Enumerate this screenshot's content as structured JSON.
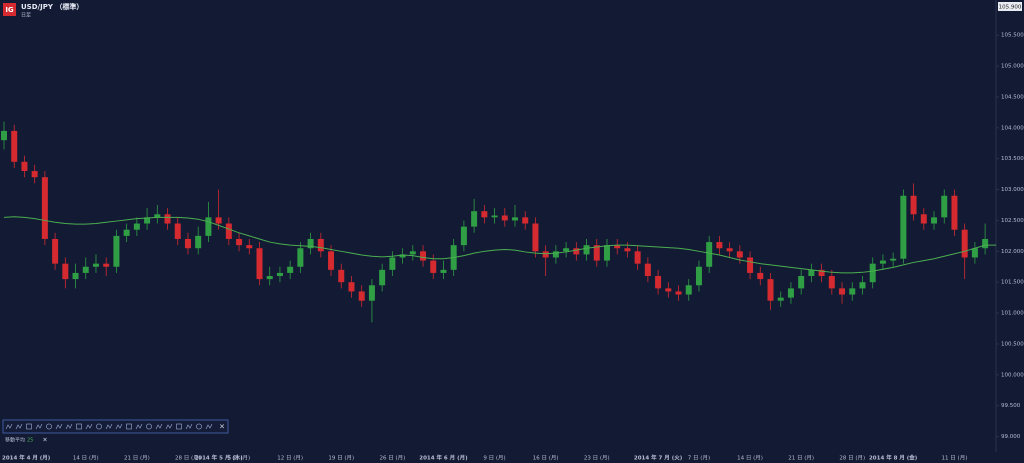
{
  "chart_data": {
    "type": "candlestick",
    "logo": "IG",
    "title": "USD/JPY （標準）",
    "subtitle": "日足",
    "price_box": "105.900",
    "categories": [
      "2014 年 4 月 (月)",
      null,
      null,
      null,
      null,
      null,
      null,
      null,
      "14 日 (月)",
      null,
      null,
      null,
      null,
      "21 日 (月)",
      null,
      null,
      null,
      null,
      "28 日 (月)",
      null,
      null,
      "2014 年 5 月 (木)",
      null,
      "5 日 (月)",
      null,
      null,
      null,
      null,
      "12 日 (月)",
      null,
      null,
      null,
      null,
      "19 日 (月)",
      null,
      null,
      null,
      null,
      "26 日 (月)",
      null,
      null,
      null,
      null,
      "2014 年 6 月 (月)",
      null,
      null,
      null,
      null,
      "9 日 (月)",
      null,
      null,
      null,
      null,
      "16 日 (月)",
      null,
      null,
      null,
      null,
      "23 日 (月)",
      null,
      null,
      null,
      null,
      null,
      "2014 年 7 月 (火)",
      null,
      null,
      null,
      "7 日 (月)",
      null,
      null,
      null,
      null,
      "14 日 (月)",
      null,
      null,
      null,
      null,
      "21 日 (月)",
      null,
      null,
      null,
      null,
      "28 日 (月)",
      null,
      null,
      null,
      "2014 年 8 月 (金)",
      null,
      null,
      null,
      null,
      null,
      "11 日 (月)",
      null,
      null,
      null
    ],
    "open": [
      103.8,
      103.95,
      103.45,
      103.3,
      103.2,
      102.2,
      101.8,
      101.55,
      101.65,
      101.75,
      101.8,
      101.75,
      102.25,
      102.35,
      102.45,
      102.55,
      102.6,
      102.45,
      102.2,
      102.05,
      102.25,
      102.55,
      102.45,
      102.2,
      102.1,
      102.05,
      101.55,
      101.6,
      101.65,
      101.75,
      102.05,
      102.2,
      102.0,
      101.7,
      101.5,
      101.35,
      101.2,
      101.45,
      101.7,
      101.9,
      101.95,
      102.0,
      101.85,
      101.65,
      101.7,
      102.1,
      102.4,
      102.65,
      102.55,
      102.58,
      102.5,
      102.55,
      102.45,
      102.0,
      101.9,
      102.0,
      102.05,
      101.95,
      102.1,
      101.85,
      102.1,
      102.05,
      102.0,
      101.8,
      101.6,
      101.4,
      101.35,
      101.3,
      101.45,
      101.75,
      102.15,
      102.05,
      102.0,
      101.9,
      101.65,
      101.55,
      101.2,
      101.25,
      101.4,
      101.6,
      101.7,
      101.6,
      101.4,
      101.3,
      101.4,
      101.5,
      101.8,
      101.85,
      101.88,
      102.9,
      102.6,
      102.45,
      102.55,
      102.9,
      102.35,
      101.9,
      102.05
    ],
    "high": [
      104.1,
      104.05,
      103.55,
      103.4,
      103.3,
      102.3,
      101.9,
      101.8,
      101.9,
      101.95,
      101.9,
      102.35,
      102.45,
      102.55,
      102.7,
      102.75,
      102.7,
      102.55,
      102.3,
      102.4,
      102.8,
      103.0,
      102.55,
      102.3,
      102.2,
      102.15,
      101.75,
      101.75,
      101.85,
      102.15,
      102.3,
      102.3,
      102.1,
      101.8,
      101.6,
      101.45,
      101.55,
      101.8,
      102.0,
      102.05,
      102.1,
      102.1,
      101.95,
      101.85,
      102.2,
      102.5,
      102.85,
      102.75,
      102.7,
      102.7,
      102.75,
      102.65,
      102.55,
      102.1,
      102.1,
      102.15,
      102.15,
      102.2,
      102.2,
      102.2,
      102.2,
      102.15,
      102.1,
      101.9,
      101.7,
      101.5,
      101.45,
      101.55,
      101.85,
      102.25,
      102.25,
      102.15,
      102.1,
      102.0,
      101.75,
      101.65,
      101.35,
      101.5,
      101.7,
      101.8,
      101.8,
      101.7,
      101.5,
      101.5,
      101.6,
      101.9,
      101.95,
      101.98,
      103.0,
      103.1,
      102.7,
      102.65,
      103.0,
      103.0,
      102.45,
      102.15,
      102.45
    ],
    "low": [
      103.65,
      103.35,
      103.2,
      103.1,
      102.1,
      101.7,
      101.4,
      101.4,
      101.55,
      101.65,
      101.6,
      101.65,
      102.15,
      102.25,
      102.35,
      102.45,
      102.35,
      102.1,
      101.95,
      101.95,
      102.15,
      102.35,
      102.1,
      102.0,
      101.95,
      101.45,
      101.45,
      101.5,
      101.55,
      101.65,
      101.95,
      101.9,
      101.6,
      101.4,
      101.25,
      101.1,
      100.85,
      101.35,
      101.6,
      101.8,
      101.85,
      101.75,
      101.55,
      101.55,
      101.6,
      102.0,
      102.3,
      102.45,
      102.45,
      102.4,
      102.4,
      102.35,
      101.9,
      101.6,
      101.8,
      101.9,
      101.85,
      101.85,
      101.75,
      101.75,
      101.95,
      101.9,
      101.7,
      101.5,
      101.3,
      101.25,
      101.2,
      101.2,
      101.35,
      101.65,
      101.95,
      101.9,
      101.8,
      101.55,
      101.45,
      101.05,
      101.1,
      101.15,
      101.3,
      101.5,
      101.5,
      101.3,
      101.15,
      101.2,
      101.3,
      101.4,
      101.7,
      101.75,
      101.8,
      102.5,
      102.35,
      102.35,
      102.45,
      102.25,
      101.55,
      101.8,
      101.95
    ],
    "close": [
      103.95,
      103.45,
      103.3,
      103.2,
      102.2,
      101.8,
      101.55,
      101.65,
      101.75,
      101.8,
      101.75,
      102.25,
      102.35,
      102.45,
      102.55,
      102.6,
      102.45,
      102.2,
      102.05,
      102.25,
      102.55,
      102.45,
      102.2,
      102.1,
      102.05,
      101.55,
      101.6,
      101.65,
      101.75,
      102.05,
      102.2,
      102.0,
      101.7,
      101.5,
      101.35,
      101.2,
      101.45,
      101.7,
      101.9,
      101.95,
      102.0,
      101.85,
      101.65,
      101.7,
      102.1,
      102.4,
      102.65,
      102.55,
      102.58,
      102.5,
      102.55,
      102.45,
      102.0,
      101.9,
      102.0,
      102.05,
      101.95,
      102.1,
      101.85,
      102.1,
      102.05,
      102.0,
      101.8,
      101.6,
      101.4,
      101.35,
      101.3,
      101.45,
      101.75,
      102.15,
      102.05,
      102.0,
      101.9,
      101.65,
      101.55,
      101.2,
      101.25,
      101.4,
      101.6,
      101.7,
      101.6,
      101.4,
      101.3,
      101.4,
      101.5,
      101.8,
      101.85,
      101.88,
      102.9,
      102.6,
      102.45,
      102.55,
      102.9,
      102.35,
      101.9,
      102.05,
      102.2
    ],
    "up_color": "#2f9e44",
    "down_color": "#d42a30",
    "indicator": {
      "name": "移動平均",
      "period": 25,
      "color": "#4caf50",
      "values": [
        102.55,
        102.56,
        102.55,
        102.53,
        102.5,
        102.47,
        102.45,
        102.44,
        102.44,
        102.45,
        102.47,
        102.49,
        102.51,
        102.53,
        102.54,
        102.55,
        102.55,
        102.55,
        102.54,
        102.52,
        102.48,
        102.42,
        102.36,
        102.3,
        102.25,
        102.2,
        102.15,
        102.12,
        102.1,
        102.09,
        102.08,
        102.06,
        102.03,
        102.0,
        101.97,
        101.94,
        101.92,
        101.91,
        101.92,
        101.94,
        101.93,
        101.9,
        101.88,
        101.88,
        101.9,
        101.93,
        101.97,
        102.0,
        102.02,
        102.03,
        102.02,
        101.99,
        101.97,
        101.96,
        101.97,
        101.99,
        102.02,
        102.05,
        102.07,
        102.09,
        102.1,
        102.1,
        102.09,
        102.08,
        102.07,
        102.06,
        102.05,
        102.03,
        102.0,
        101.97,
        101.94,
        101.9,
        101.86,
        101.83,
        101.8,
        101.78,
        101.76,
        101.74,
        101.72,
        101.7,
        101.68,
        101.66,
        101.65,
        101.65,
        101.66,
        101.68,
        101.71,
        101.74,
        101.78,
        101.82,
        101.85,
        101.88,
        101.92,
        101.96,
        102.0,
        102.05,
        102.1
      ]
    },
    "ylim": [
      98.75,
      106.07
    ],
    "yticks": [
      {
        "value": 99,
        "label": "99.000"
      },
      {
        "value": 99.5,
        "label": "99.500"
      },
      {
        "value": 100,
        "label": "100.000"
      },
      {
        "value": 100.5,
        "label": "100.500"
      },
      {
        "value": 101,
        "label": "101.000"
      },
      {
        "value": 101.5,
        "label": "101.500"
      },
      {
        "value": 102,
        "label": "102.000"
      },
      {
        "value": 102.5,
        "label": "102.500"
      },
      {
        "value": 103,
        "label": "103.000"
      },
      {
        "value": 103.5,
        "label": "103.500"
      },
      {
        "value": 104,
        "label": "104.000"
      },
      {
        "value": 104.5,
        "label": "104.500"
      },
      {
        "value": 105,
        "label": "105.000"
      },
      {
        "value": 105.5,
        "label": "105.500"
      }
    ],
    "grid": false,
    "toolbar_close": "×",
    "legend_close": "×"
  }
}
